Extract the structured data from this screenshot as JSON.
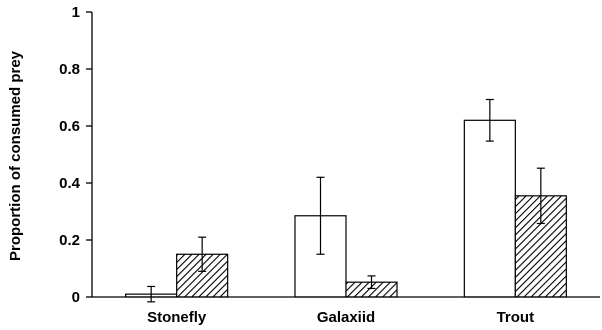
{
  "chart_data": {
    "type": "bar",
    "title": "",
    "xlabel": "",
    "ylabel": "Proportion of consumed prey",
    "ylim": [
      0,
      1
    ],
    "yticks": [
      "0",
      "0.2",
      "0.4",
      "0.6",
      "0.8",
      "1"
    ],
    "categories": [
      "Stonefly",
      "Galaxiid",
      "Trout"
    ],
    "legend": "none",
    "grid": false,
    "series": [
      {
        "fill": "open",
        "color": "#ffffff",
        "values": [
          0.01,
          0.285,
          0.62
        ],
        "errors": [
          0.027,
          0.135,
          0.073
        ]
      },
      {
        "fill": "hatched",
        "color": "#000000",
        "values": [
          0.15,
          0.052,
          0.355
        ],
        "errors": [
          0.06,
          0.022,
          0.097
        ]
      }
    ]
  }
}
